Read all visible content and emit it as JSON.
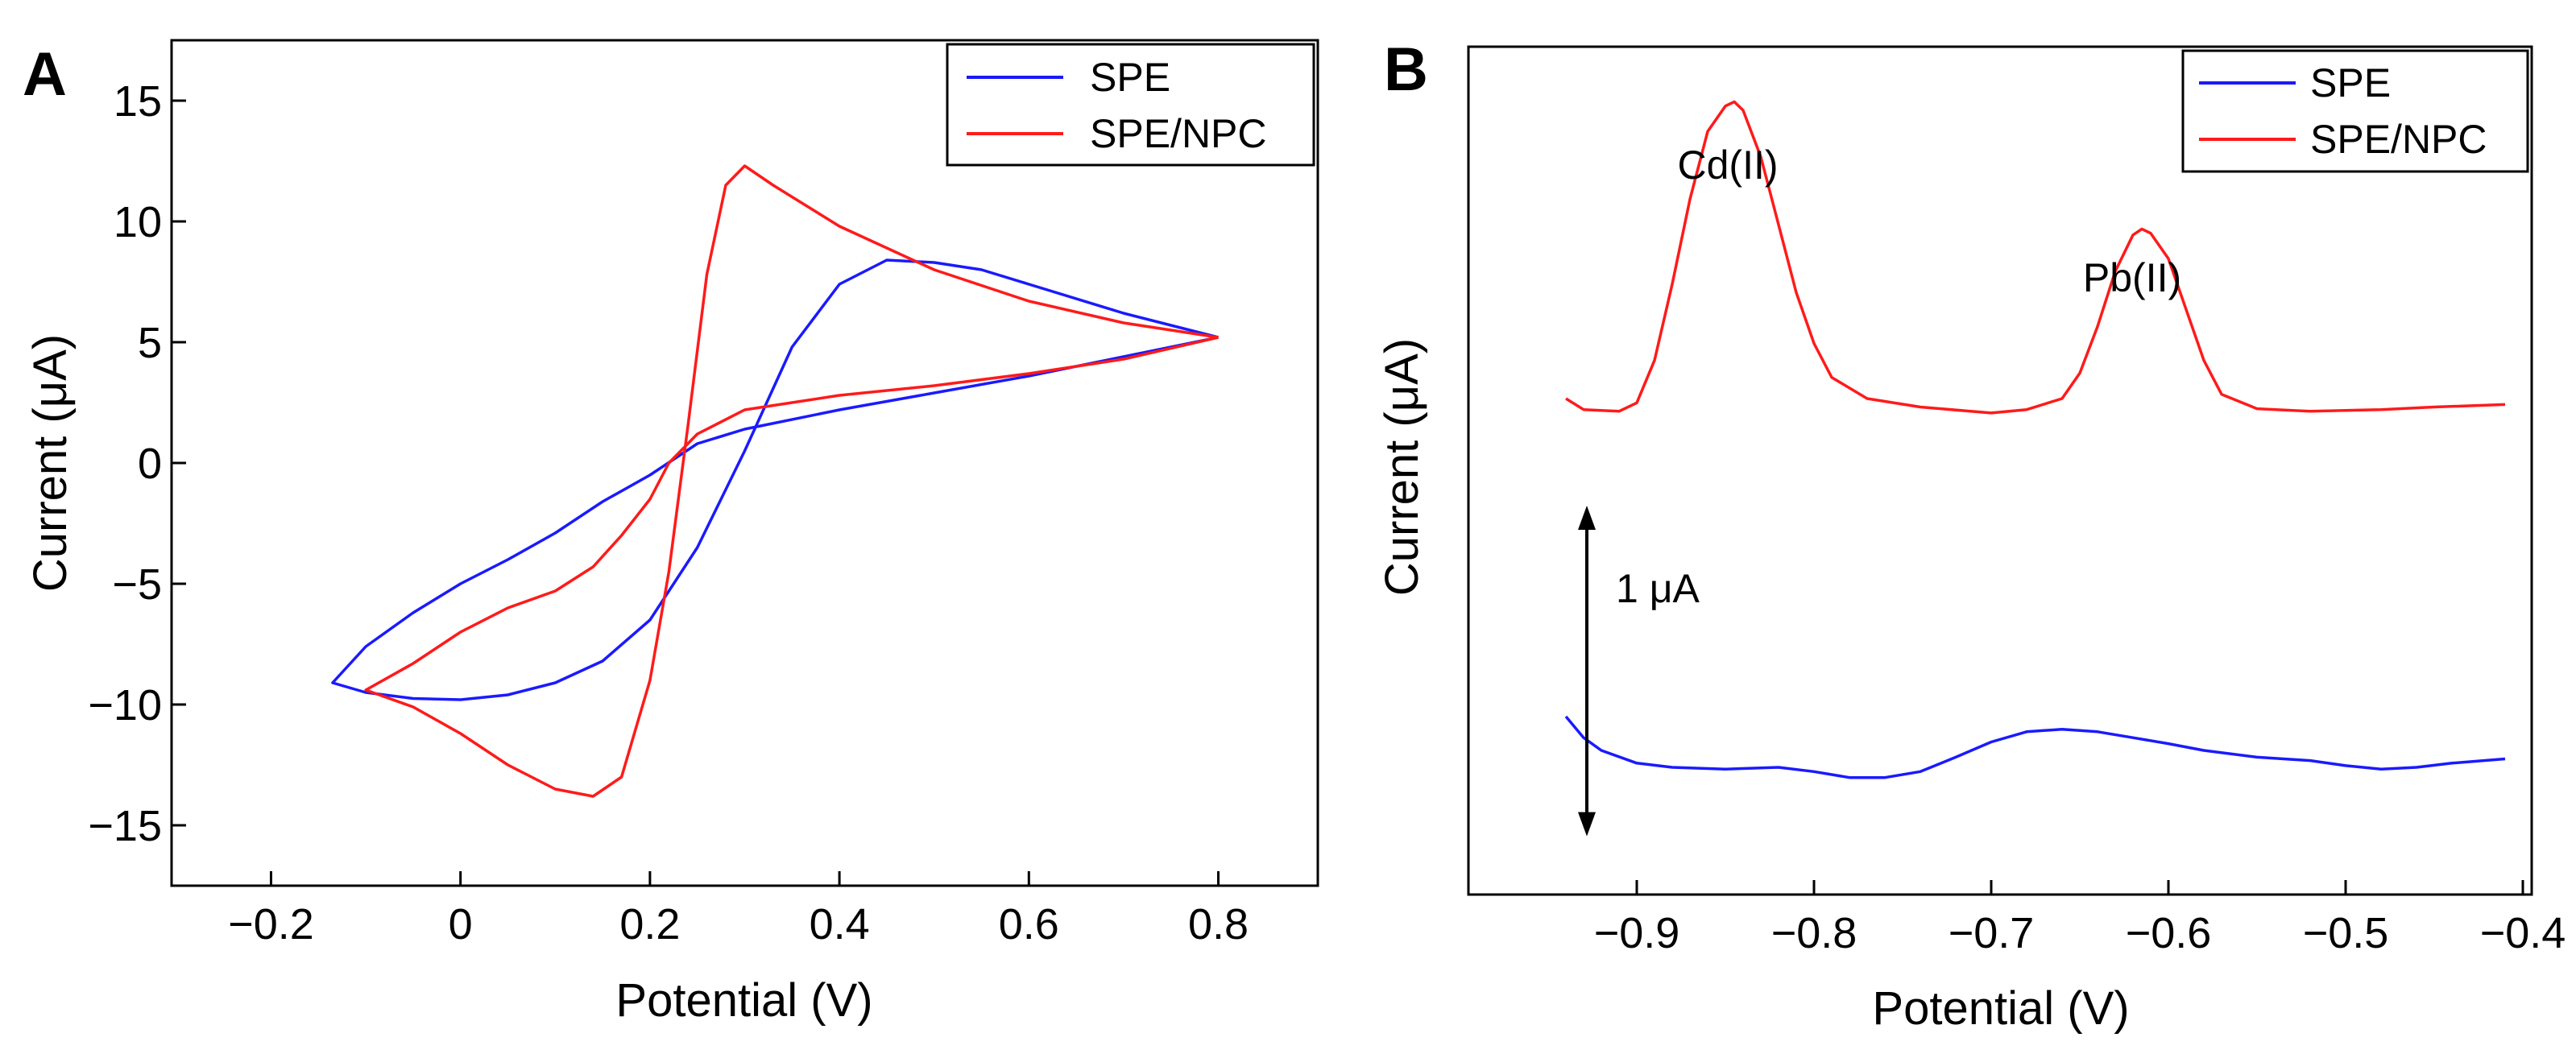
{
  "chart_data": [
    {
      "panel": "A",
      "type": "line",
      "title": "",
      "xlabel": "Potential (V)",
      "ylabel": "Current (μA)",
      "xlim": [
        -0.305,
        0.905
      ],
      "ylim": [
        -17.5,
        17.5
      ],
      "xticks": [
        -0.2,
        0,
        0.2,
        0.4,
        0.6,
        0.8
      ],
      "xtick_labels": [
        "−0.2",
        "0",
        "0.2",
        "0.4",
        "0.6",
        "0.8"
      ],
      "yticks": [
        -15,
        -10,
        -5,
        0,
        5,
        10,
        15
      ],
      "ytick_labels": [
        "−15",
        "−10",
        "−5",
        "0",
        "5",
        "10",
        "15"
      ],
      "grid": false,
      "legend": {
        "position": "top-right",
        "entries": [
          "SPE",
          "SPE/NPC"
        ]
      },
      "series": [
        {
          "name": "SPE",
          "color": "#1a1aff",
          "points": [
            [
              0.8,
              5.2
            ],
            [
              0.7,
              4.4
            ],
            [
              0.6,
              3.6
            ],
            [
              0.5,
              2.9
            ],
            [
              0.4,
              2.2
            ],
            [
              0.3,
              1.4
            ],
            [
              0.25,
              0.8
            ],
            [
              0.2,
              -0.5
            ],
            [
              0.15,
              -1.6
            ],
            [
              0.1,
              -2.9
            ],
            [
              0.05,
              -4.0
            ],
            [
              0.0,
              -5.0
            ],
            [
              -0.05,
              -6.2
            ],
            [
              -0.1,
              -7.6
            ],
            [
              -0.135,
              -9.1
            ],
            [
              -0.1,
              -9.5
            ],
            [
              -0.05,
              -9.75
            ],
            [
              0.0,
              -9.8
            ],
            [
              0.05,
              -9.6
            ],
            [
              0.1,
              -9.1
            ],
            [
              0.15,
              -8.2
            ],
            [
              0.2,
              -6.5
            ],
            [
              0.25,
              -3.5
            ],
            [
              0.3,
              0.5
            ],
            [
              0.35,
              4.8
            ],
            [
              0.4,
              7.4
            ],
            [
              0.45,
              8.4
            ],
            [
              0.5,
              8.3
            ],
            [
              0.55,
              8.0
            ],
            [
              0.6,
              7.4
            ],
            [
              0.7,
              6.2
            ],
            [
              0.8,
              5.2
            ]
          ]
        },
        {
          "name": "SPE/NPC",
          "color": "#ff1a1a",
          "points": [
            [
              0.8,
              5.2
            ],
            [
              0.7,
              4.3
            ],
            [
              0.6,
              3.7
            ],
            [
              0.5,
              3.2
            ],
            [
              0.4,
              2.8
            ],
            [
              0.35,
              2.5
            ],
            [
              0.3,
              2.2
            ],
            [
              0.25,
              1.2
            ],
            [
              0.22,
              0.0
            ],
            [
              0.2,
              -1.5
            ],
            [
              0.17,
              -3.0
            ],
            [
              0.14,
              -4.3
            ],
            [
              0.1,
              -5.3
            ],
            [
              0.05,
              -6.0
            ],
            [
              0.0,
              -7.0
            ],
            [
              -0.05,
              -8.3
            ],
            [
              -0.1,
              -9.4
            ],
            [
              -0.05,
              -10.1
            ],
            [
              0.0,
              -11.2
            ],
            [
              0.05,
              -12.5
            ],
            [
              0.1,
              -13.5
            ],
            [
              0.14,
              -13.8
            ],
            [
              0.17,
              -13.0
            ],
            [
              0.2,
              -9.0
            ],
            [
              0.22,
              -4.5
            ],
            [
              0.24,
              1.5
            ],
            [
              0.26,
              7.8
            ],
            [
              0.28,
              11.5
            ],
            [
              0.3,
              12.3
            ],
            [
              0.33,
              11.5
            ],
            [
              0.4,
              9.8
            ],
            [
              0.5,
              8.0
            ],
            [
              0.6,
              6.7
            ],
            [
              0.7,
              5.8
            ],
            [
              0.8,
              5.2
            ]
          ]
        }
      ]
    },
    {
      "panel": "B",
      "type": "line",
      "title": "",
      "xlabel": "Potential (V)",
      "ylabel": "Current (μA)",
      "xlim": [
        -0.995,
        -0.395
      ],
      "ylim": [
        0,
        10
      ],
      "y_axis_tick_labels_shown": false,
      "xticks": [
        -0.9,
        -0.8,
        -0.7,
        -0.6,
        -0.5,
        -0.4
      ],
      "xtick_labels": [
        "−0.9",
        "−0.8",
        "−0.7",
        "−0.6",
        "−0.5",
        "−0.4"
      ],
      "grid": false,
      "legend": {
        "position": "top-right",
        "entries": [
          "SPE",
          "SPE/NPC"
        ]
      },
      "annotations": {
        "peak_cd": "Cd(II)",
        "peak_pb": "Pb(II)",
        "scale_bar": "1 μA",
        "scale_bar_value_uA": 1
      },
      "series": [
        {
          "name": "SPE",
          "color": "#1a1aff",
          "points": [
            [
              -0.94,
              2.1
            ],
            [
              -0.93,
              1.85
            ],
            [
              -0.92,
              1.7
            ],
            [
              -0.9,
              1.55
            ],
            [
              -0.88,
              1.5
            ],
            [
              -0.85,
              1.48
            ],
            [
              -0.82,
              1.5
            ],
            [
              -0.8,
              1.45
            ],
            [
              -0.78,
              1.38
            ],
            [
              -0.76,
              1.38
            ],
            [
              -0.74,
              1.45
            ],
            [
              -0.72,
              1.62
            ],
            [
              -0.7,
              1.8
            ],
            [
              -0.68,
              1.92
            ],
            [
              -0.66,
              1.95
            ],
            [
              -0.64,
              1.92
            ],
            [
              -0.62,
              1.85
            ],
            [
              -0.6,
              1.78
            ],
            [
              -0.58,
              1.7
            ],
            [
              -0.55,
              1.62
            ],
            [
              -0.52,
              1.58
            ],
            [
              -0.5,
              1.52
            ],
            [
              -0.48,
              1.48
            ],
            [
              -0.46,
              1.5
            ],
            [
              -0.44,
              1.55
            ],
            [
              -0.41,
              1.6
            ]
          ]
        },
        {
          "name": "SPE/NPC",
          "color": "#ff1a1a",
          "points": [
            [
              -0.94,
              5.85
            ],
            [
              -0.93,
              5.72
            ],
            [
              -0.91,
              5.7
            ],
            [
              -0.9,
              5.8
            ],
            [
              -0.89,
              6.3
            ],
            [
              -0.88,
              7.2
            ],
            [
              -0.87,
              8.2
            ],
            [
              -0.86,
              9.0
            ],
            [
              -0.85,
              9.3
            ],
            [
              -0.845,
              9.35
            ],
            [
              -0.84,
              9.25
            ],
            [
              -0.83,
              8.7
            ],
            [
              -0.82,
              7.9
            ],
            [
              -0.81,
              7.1
            ],
            [
              -0.8,
              6.5
            ],
            [
              -0.79,
              6.1
            ],
            [
              -0.77,
              5.85
            ],
            [
              -0.74,
              5.75
            ],
            [
              -0.7,
              5.68
            ],
            [
              -0.68,
              5.72
            ],
            [
              -0.66,
              5.85
            ],
            [
              -0.65,
              6.15
            ],
            [
              -0.64,
              6.7
            ],
            [
              -0.63,
              7.35
            ],
            [
              -0.62,
              7.78
            ],
            [
              -0.615,
              7.85
            ],
            [
              -0.61,
              7.8
            ],
            [
              -0.6,
              7.5
            ],
            [
              -0.59,
              6.9
            ],
            [
              -0.58,
              6.3
            ],
            [
              -0.57,
              5.9
            ],
            [
              -0.55,
              5.73
            ],
            [
              -0.52,
              5.7
            ],
            [
              -0.48,
              5.72
            ],
            [
              -0.45,
              5.75
            ],
            [
              -0.41,
              5.78
            ]
          ]
        }
      ]
    }
  ]
}
